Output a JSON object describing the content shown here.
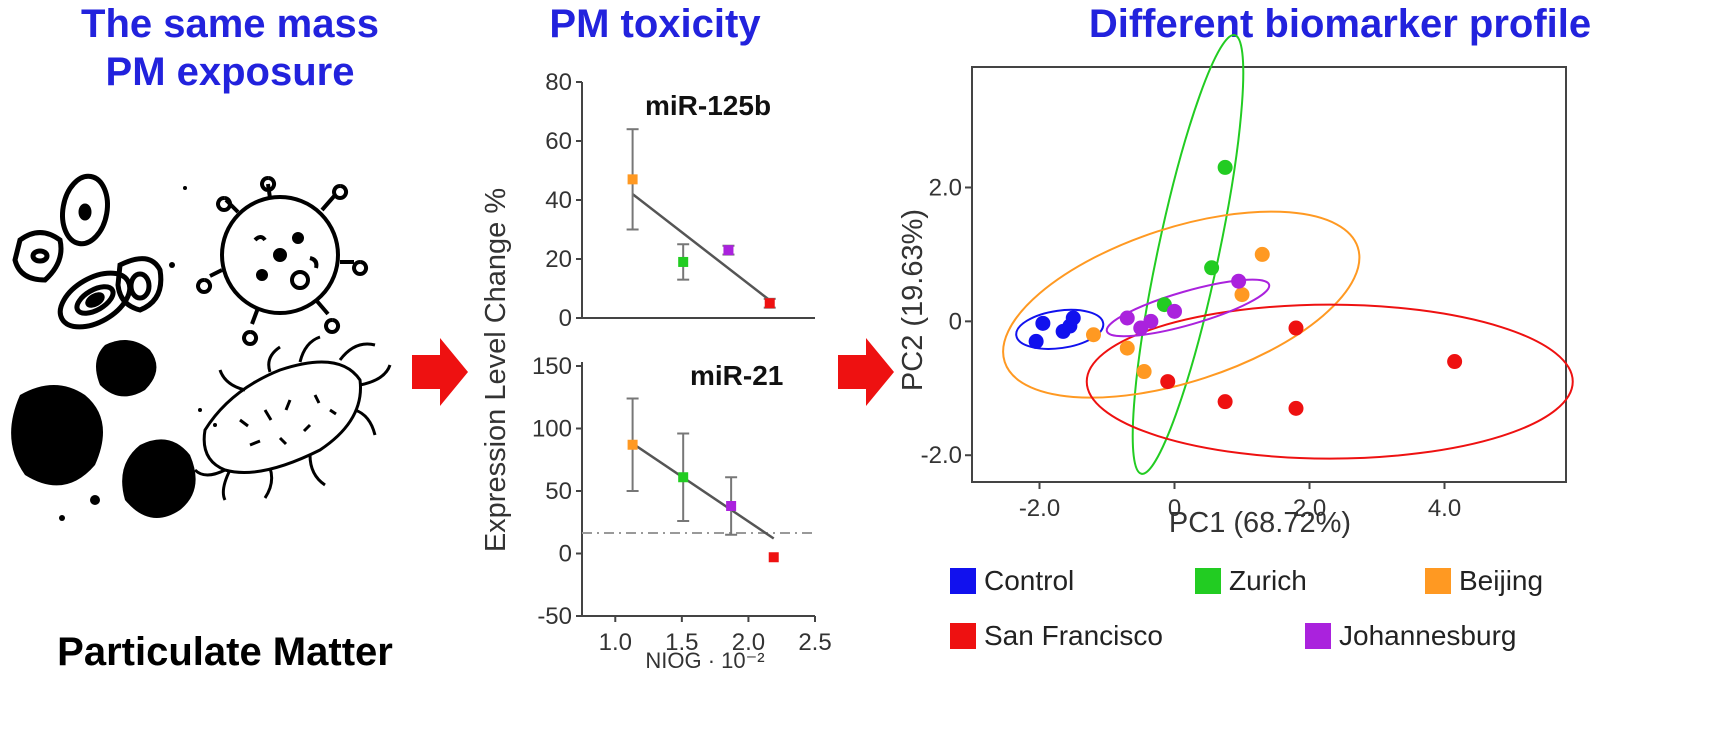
{
  "headings": {
    "left_line1": "The same mass",
    "left_line2": "PM exposure",
    "middle": "PM toxicity",
    "right": "Different biomarker profile"
  },
  "pm_label": "Particulate Matter",
  "colors": {
    "heading": "#2222dd",
    "arrow": "#ee1111",
    "control": "#1111ee",
    "zurich": "#22cc22",
    "beijing": "#ff9922",
    "san_francisco": "#ee1111",
    "johannesburg": "#aa22dd"
  },
  "icons": [
    "particle-icon",
    "virus-icon",
    "bacterium-icon",
    "soot-icon"
  ],
  "chart_data": [
    {
      "type": "scatter",
      "title": "miR-125b",
      "xlabel": "NIOG · 10⁻²",
      "ylabel": "Expression Level Change %",
      "xlim": [
        0.75,
        2.5
      ],
      "ylim": [
        0,
        80
      ],
      "yticks": [
        "0",
        "20",
        "40",
        "60",
        "80"
      ],
      "points": [
        {
          "x": 1.13,
          "y": 47,
          "err": 17,
          "color": "#ff9922"
        },
        {
          "x": 1.51,
          "y": 19,
          "err": 6,
          "color": "#22cc22"
        },
        {
          "x": 1.85,
          "y": 23,
          "err": 1.5,
          "color": "#aa22dd"
        },
        {
          "x": 2.16,
          "y": 5,
          "err": 1.5,
          "color": "#ee1111"
        }
      ],
      "fit": [
        [
          1.13,
          42
        ],
        [
          2.16,
          6
        ]
      ]
    },
    {
      "type": "scatter",
      "title": "miR-21",
      "xlabel": "NIOG · 10⁻²",
      "ylabel": "Expression Level Change %",
      "xlim": [
        0.75,
        2.5
      ],
      "ylim": [
        -50,
        150
      ],
      "yticks": [
        "150",
        "100",
        "50",
        "0",
        "-50"
      ],
      "xticks": [
        "1.0",
        "1.5",
        "2.0",
        "2.5"
      ],
      "points": [
        {
          "x": 1.13,
          "y": 87,
          "err": 37,
          "color": "#ff9922"
        },
        {
          "x": 1.51,
          "y": 61,
          "err": 35,
          "color": "#22cc22"
        },
        {
          "x": 1.87,
          "y": 38,
          "err": 23,
          "color": "#aa22dd"
        },
        {
          "x": 2.19,
          "y": -3,
          "err": 0,
          "color": "#ee1111"
        }
      ],
      "fit": [
        [
          1.13,
          88
        ],
        [
          2.19,
          12
        ]
      ]
    },
    {
      "type": "scatter",
      "xlabel": "PC1 (68.72%)",
      "ylabel": "PC2 (19.63%)",
      "xlim": [
        -3.0,
        5.8
      ],
      "ylim": [
        -2.4,
        3.8
      ],
      "xticks": [
        "-2.0",
        "0",
        "2.0",
        "4.0"
      ],
      "yticks": [
        "2.0",
        "0",
        "-2.0"
      ],
      "series": [
        {
          "name": "Control",
          "color": "#1111ee",
          "points": [
            [
              -2.05,
              -0.3
            ],
            [
              -1.95,
              -0.03
            ],
            [
              -1.65,
              -0.15
            ],
            [
              -1.55,
              -0.07
            ],
            [
              -1.5,
              0.05
            ]
          ],
          "ellipse": {
            "cx": -1.7,
            "cy": -0.12,
            "rx": 0.65,
            "ry": 0.28,
            "angle": 8
          }
        },
        {
          "name": "Zurich",
          "color": "#22cc22",
          "points": [
            [
              0.75,
              2.3
            ],
            [
              0.55,
              0.8
            ],
            [
              -0.15,
              0.25
            ]
          ],
          "ellipse": {
            "cx": 0.2,
            "cy": 1.0,
            "rx": 0.45,
            "ry": 3.35,
            "angle": -12
          }
        },
        {
          "name": "Beijing",
          "color": "#ff9922",
          "points": [
            [
              1.3,
              1.0
            ],
            [
              1.0,
              0.4
            ],
            [
              -1.2,
              -0.2
            ],
            [
              -0.7,
              -0.4
            ],
            [
              -0.45,
              -0.75
            ]
          ],
          "ellipse": {
            "cx": 0.1,
            "cy": 0.25,
            "rx": 2.75,
            "ry": 1.15,
            "angle": 18
          }
        },
        {
          "name": "San Francisco",
          "color": "#ee1111",
          "points": [
            [
              -0.1,
              -0.9
            ],
            [
              0.75,
              -1.2
            ],
            [
              1.8,
              -0.1
            ],
            [
              1.8,
              -1.3
            ],
            [
              4.15,
              -0.6
            ]
          ],
          "ellipse": {
            "cx": 2.3,
            "cy": -0.9,
            "rx": 3.6,
            "ry": 1.15,
            "angle": 0
          }
        },
        {
          "name": "Johannesburg",
          "color": "#aa22dd",
          "points": [
            [
              -0.7,
              0.05
            ],
            [
              -0.5,
              -0.1
            ],
            [
              -0.35,
              0.0
            ],
            [
              0.0,
              0.15
            ],
            [
              0.95,
              0.6
            ]
          ],
          "ellipse": {
            "cx": 0.2,
            "cy": 0.2,
            "rx": 1.25,
            "ry": 0.25,
            "angle": 16
          }
        }
      ]
    }
  ]
}
